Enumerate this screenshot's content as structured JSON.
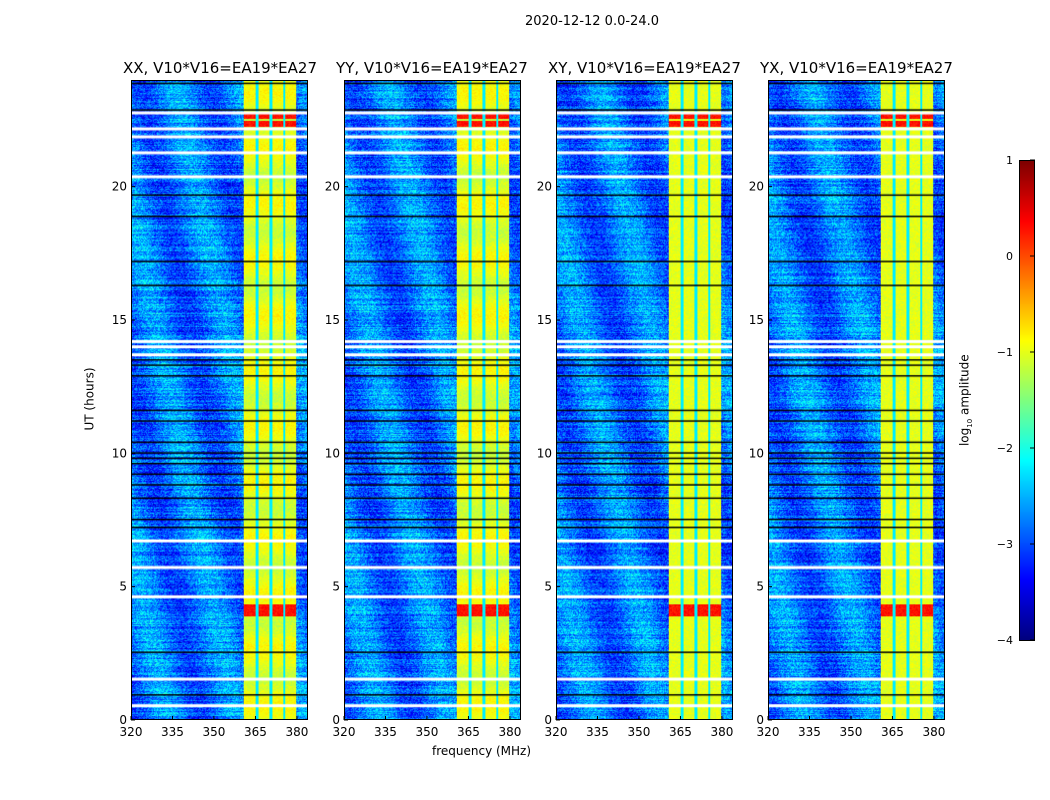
{
  "chart_data": {
    "type": "heatmap",
    "suptitle": "2020-12-12 0.0-24.0",
    "xlabel": "frequency (MHz)",
    "ylabel": "UT (hours)",
    "xlim": [
      320,
      384
    ],
    "ylim": [
      0,
      24
    ],
    "xticks": [
      "320",
      "335",
      "350",
      "365",
      "380"
    ],
    "xtick_values": [
      320,
      335,
      350,
      365,
      380
    ],
    "yticks": [
      "0",
      "5",
      "10",
      "15",
      "20"
    ],
    "ytick_values": [
      0,
      5,
      10,
      15,
      20
    ],
    "panels": [
      {
        "title": "XX, V10*V16=EA19*EA27"
      },
      {
        "title": "YY, V10*V16=EA19*EA27"
      },
      {
        "title": "XY, V10*V16=EA19*EA27"
      },
      {
        "title": "YX, V10*V16=EA19*EA27"
      }
    ],
    "colorbar": {
      "label_main": "log",
      "label_sub": "10",
      "label_rest": " amplitude",
      "range": [
        -4,
        1
      ],
      "ticks": [
        "1",
        "0",
        "−1",
        "−2",
        "−3",
        "−4"
      ],
      "tick_values": [
        1,
        0,
        -1,
        -2,
        -3,
        -4
      ],
      "colormap": "jet"
    },
    "background_level": -2.8,
    "rfi_band_mhz": [
      360.5,
      380
    ],
    "rfi_band_level": -1.0,
    "band_dips_mhz": [
      365.5,
      370.5,
      375.5
    ],
    "hot_hours": [
      22.7,
      22.4,
      4.2,
      4.0
    ],
    "hot_level": 0.3,
    "flagged_white_hours": [
      22.8,
      22.2,
      21.9,
      21.3,
      20.4,
      14.2,
      14.0,
      13.7,
      6.7,
      5.7,
      4.6,
      1.5,
      0.5
    ],
    "flagged_black_hours": [
      23.9,
      22.9,
      19.7,
      18.9,
      17.2,
      16.3,
      13.5,
      13.3,
      12.9,
      11.6,
      11.2,
      10.4,
      10.0,
      9.8,
      9.6,
      9.2,
      8.8,
      8.3,
      7.5,
      7.2,
      2.5,
      0.9
    ]
  }
}
